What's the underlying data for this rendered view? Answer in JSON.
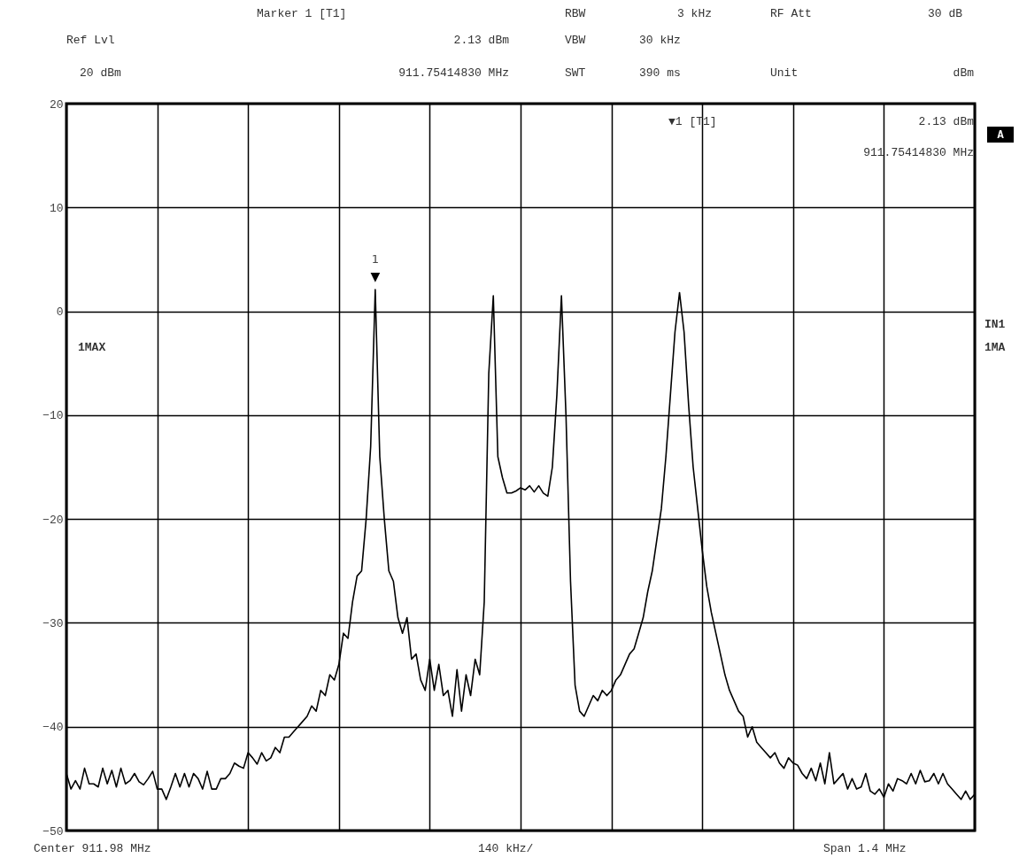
{
  "chart_data": {
    "type": "line",
    "categories": [
      null,
      null,
      null,
      null,
      null,
      null,
      null,
      null,
      null,
      null,
      null,
      null,
      null,
      null,
      null,
      null,
      null,
      null,
      null,
      null,
      null,
      null,
      null,
      null,
      null,
      null,
      null,
      null,
      null,
      null,
      null,
      null,
      null,
      null,
      null,
      null,
      null,
      null,
      null,
      null,
      null,
      null,
      null,
      null,
      null,
      null,
      null,
      null,
      null,
      null,
      null,
      null,
      null,
      null,
      null,
      null,
      null,
      null,
      null,
      null,
      null,
      null,
      null,
      null,
      null,
      null,
      null,
      null,
      null,
      null,
      null,
      null,
      null,
      null,
      null,
      null,
      null,
      null,
      null,
      null,
      null,
      null,
      null,
      null,
      null,
      null,
      null,
      null,
      null,
      null,
      null,
      null,
      null,
      null,
      null,
      null,
      null,
      null,
      null,
      null,
      null,
      null,
      null,
      null,
      null,
      null,
      null,
      null,
      null,
      null,
      null,
      null,
      null,
      null,
      null,
      null,
      null,
      null,
      null,
      null,
      null,
      null,
      null,
      null,
      null,
      null,
      null,
      null,
      null,
      null,
      null,
      null,
      null,
      null,
      null,
      null,
      null,
      null,
      null,
      null,
      null,
      null,
      null,
      null,
      null,
      null,
      null,
      null,
      null,
      null,
      null,
      null,
      null,
      null,
      null,
      null,
      null,
      null,
      null,
      null,
      null,
      null,
      null,
      null,
      null,
      null,
      null,
      null,
      null,
      null,
      null,
      null,
      null,
      null,
      null,
      null,
      null,
      null,
      null,
      null,
      null,
      null,
      null,
      null,
      null,
      null,
      null,
      null,
      null,
      null,
      null,
      null,
      null,
      null,
      null,
      null,
      null,
      null,
      null,
      null,
      null
    ],
    "series": [
      {
        "color": "#000000",
        "values": [
          -44.5,
          -46,
          -45.2,
          -46,
          -44,
          -45.5,
          -45.5,
          -45.8,
          -44,
          -45.5,
          -44.2,
          -45.8,
          -44,
          -45.5,
          -45.2,
          -44.5,
          -45.3,
          -45.6,
          -45,
          -44.3,
          -46,
          -46,
          -47,
          -45.8,
          -44.5,
          -45.8,
          -44.5,
          -45.8,
          -44.5,
          -45,
          -46,
          -44.3,
          -46,
          -46,
          -45,
          -45,
          -44.5,
          -43.5,
          -43.8,
          -44,
          -42.5,
          -43,
          -43.6,
          -42.5,
          -43.3,
          -43,
          -42,
          -42.5,
          -41,
          -41,
          -40.5,
          -40,
          -39.5,
          -39,
          -38,
          -38.5,
          -36.5,
          -37,
          -35,
          -35.5,
          -34,
          -31,
          -31.5,
          -28,
          -25.5,
          -25,
          -20,
          -13,
          2.1,
          -14,
          -20,
          -25,
          -26,
          -29.5,
          -31,
          -29.5,
          -33.5,
          -33,
          -35.5,
          -36.5,
          -33.5,
          -36.5,
          -34,
          -37,
          -36.5,
          -39,
          -34.5,
          -38.5,
          -35,
          -37,
          -33.5,
          -35,
          -28,
          -6,
          1.5,
          -14,
          -16,
          -17.5,
          -17.5,
          -17.3,
          -17,
          -17.2,
          -16.8,
          -17.4,
          -16.8,
          -17.5,
          -17.8,
          -15,
          -8,
          1.5,
          -10,
          -26,
          -36,
          -38.5,
          -39,
          -38,
          -37,
          -37.5,
          -36.5,
          -37,
          -36.5,
          -35.5,
          -35,
          -34,
          -33,
          -32.5,
          -31,
          -29.5,
          -27,
          -25,
          -22,
          -19,
          -14,
          -8,
          -2,
          1.8,
          -2,
          -9,
          -15,
          -19,
          -23,
          -26.5,
          -29,
          -31,
          -33,
          -35,
          -36.5,
          -37.5,
          -38.5,
          -39,
          -41,
          -40,
          -41.5,
          -42,
          -42.5,
          -43,
          -42.5,
          -43.5,
          -44,
          -43,
          -43.5,
          -43.7,
          -44.5,
          -45,
          -44,
          -45.2,
          -43.5,
          -45.5,
          -42.5,
          -45.5,
          -45,
          -44.5,
          -46,
          -45,
          -46,
          -45.8,
          -44.5,
          -46.2,
          -46.5,
          -46,
          -46.8,
          -45.5,
          -46.2,
          -45,
          -45.2,
          -45.5,
          -44.5,
          -45.5,
          -44.2,
          -45.3,
          -45.2,
          -44.5,
          -45.5,
          -44.5,
          -45.5,
          -46,
          -46.5,
          -47,
          -46.2,
          -47,
          -46.5
        ]
      }
    ],
    "ylim": [
      -50,
      20
    ],
    "yticks": [
      -50,
      -40,
      -30,
      -20,
      -10,
      0,
      10,
      20
    ],
    "grid": true,
    "tick_labels": "y",
    "annotations": [
      "Marker 1 [T1]",
      "RBW",
      "3 kHz",
      "RF Att",
      "30 dB",
      "Ref Lvl",
      "2.13 dBm",
      "VBW",
      "30 kHz",
      "20 dBm",
      "911.75414830 MHz",
      "SWT",
      "390 ms",
      "Unit",
      "dBm",
      "▼1 [T1]",
      "2.13 dBm",
      "911.75414830 MHz",
      "A",
      "IN1",
      "1MA",
      "1MAX",
      {
        "text": "1",
        "y": 2.1
      },
      {
        "text": "▼",
        "y": 2.1
      },
      "Center 911.98 MHz",
      "140 kHz/",
      "Span 1.4 MHz"
    ]
  }
}
